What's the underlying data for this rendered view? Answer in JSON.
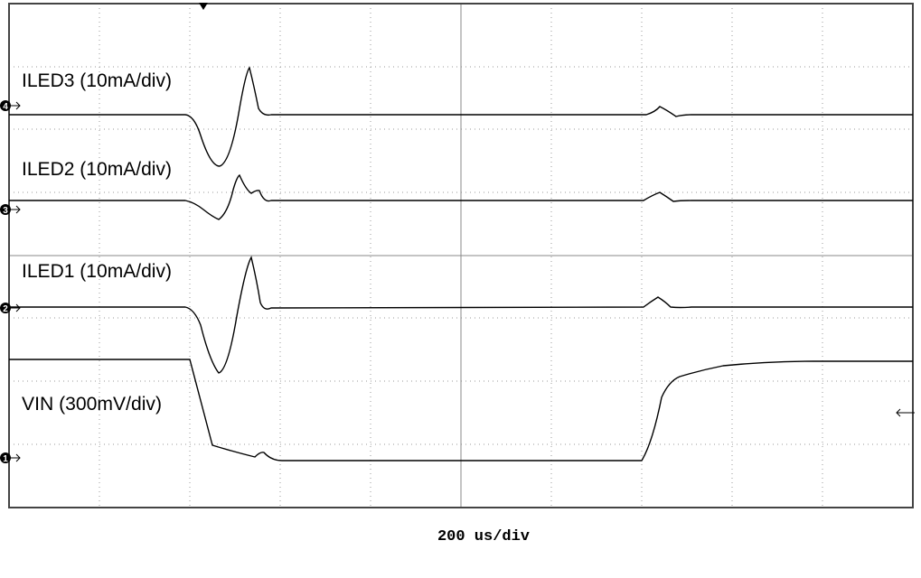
{
  "channels": [
    {
      "label": "ILED3 (10mA/div)",
      "marker": "4"
    },
    {
      "label": "ILED2 (10mA/div)",
      "marker": "3"
    },
    {
      "label": "ILED1 (10mA/div)",
      "marker": "2"
    },
    {
      "label": "VIN (300mV/div)",
      "marker": "1"
    }
  ],
  "timebase": "200 us/div"
}
